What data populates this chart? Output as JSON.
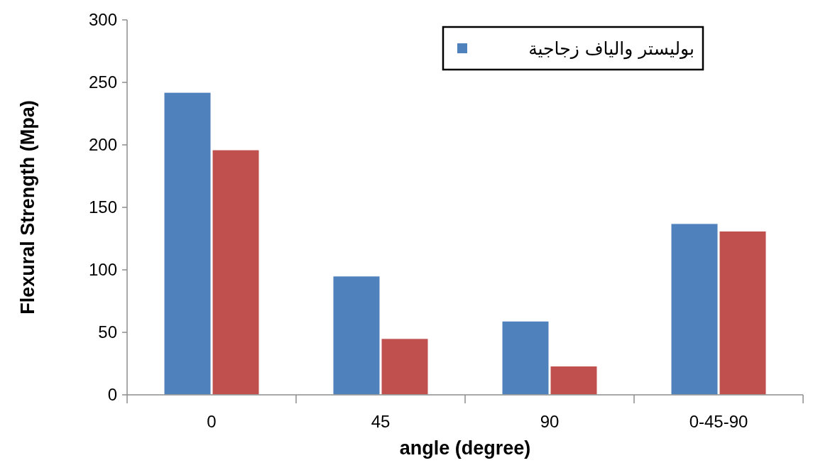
{
  "chart_data": {
    "type": "bar",
    "xlabel": "angle (degree)",
    "ylabel": "Flexural Strength (Mpa)",
    "categories": [
      "0",
      "45",
      "90",
      "0-45-90"
    ],
    "series": [
      {
        "name": "بوليستر والياف زجاجية",
        "color": "#4f81bd",
        "values": [
          242,
          95,
          59,
          137
        ]
      },
      {
        "color": "#c0504d",
        "values": [
          196,
          45,
          23,
          131
        ]
      }
    ],
    "ylim": [
      0,
      300
    ],
    "yticks": [
      0,
      50,
      100,
      150,
      200,
      250,
      300
    ],
    "legend": "top right"
  }
}
